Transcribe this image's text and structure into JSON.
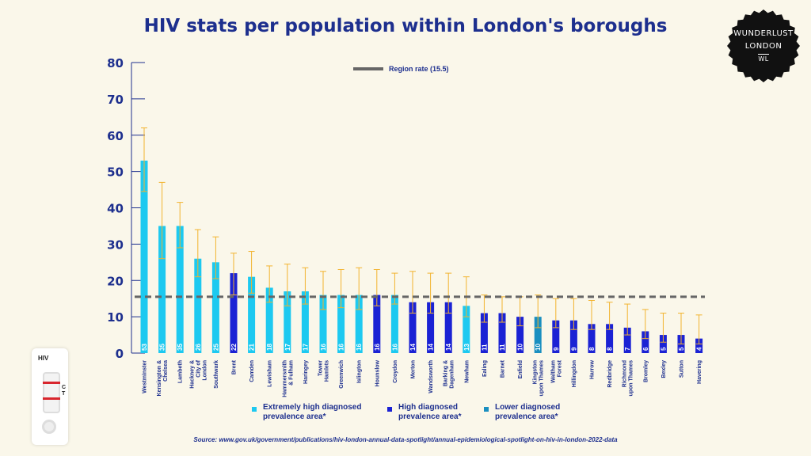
{
  "title": "HIV stats per population within London's boroughs",
  "badge": {
    "line1": "WUNDERLUST",
    "line2": "LONDON",
    "mark": "WL"
  },
  "card": {
    "label": "HIV",
    "control": "C",
    "test": "T"
  },
  "source": "Source: www.gov.uk/government/publications/hiv-london-annual-data-spotlight/annual-epidemiological-spotlight-on-hiv-in-london-2022-data",
  "region_label": "Region rate (15.5)",
  "colors": {
    "extremely": "#1dc9f0",
    "high": "#1b22d4",
    "lower": "#1a8fc0",
    "error": "#f2b32e",
    "title": "#1d2f8e",
    "region": "#666666"
  },
  "legend": [
    {
      "key": "extremely",
      "label": "Extremely high diagnosed prevalence area*"
    },
    {
      "key": "high",
      "label": "High diagnosed prevalence area*"
    },
    {
      "key": "lower",
      "label": "Lower diagnosed prevalence area*"
    }
  ],
  "chart_data": {
    "type": "bar",
    "title": "HIV stats per population within London's boroughs",
    "ylim": [
      0,
      80
    ],
    "yticks": [
      0,
      10,
      20,
      30,
      40,
      50,
      60,
      70,
      80
    ],
    "region_rate": 15.5,
    "categories": [
      "Westminster",
      "Kensington & Chelsea",
      "Lambeth",
      "Hackney & City of London",
      "Southwark",
      "Brent",
      "Camden",
      "Lewisham",
      "Hammersmith & Fulham",
      "Haringey",
      "Tower Hamlets",
      "Greenwich",
      "Islington",
      "Hounslow",
      "Croydon",
      "Merton",
      "Wandsworth",
      "Barking & Dagenham",
      "Newham",
      "Ealing",
      "Barnet",
      "Enfield",
      "Kingston upon Thames",
      "Waltham Forest",
      "Hillingdon",
      "Harrow",
      "Redbridge",
      "Richmond upon Thames",
      "Bromley",
      "Bexley",
      "Sutton",
      "Havering"
    ],
    "values": [
      53,
      35,
      35,
      26,
      25,
      22,
      21,
      18,
      17,
      17,
      16,
      16,
      16,
      16,
      16,
      14,
      14,
      14,
      13,
      11,
      11,
      10,
      10,
      9,
      9,
      8,
      8,
      7,
      6,
      5,
      5,
      4
    ],
    "error_low": [
      44.5,
      26,
      29,
      21,
      20.5,
      16,
      16.5,
      14,
      13,
      13.5,
      12,
      12.5,
      12,
      13,
      13.5,
      11,
      11,
      11,
      10,
      8.5,
      8.5,
      7.5,
      7,
      7,
      6.5,
      6.5,
      6.5,
      5,
      4,
      3,
      2.5,
      2.5
    ],
    "error_high": [
      62,
      47,
      41.5,
      34,
      32,
      27.5,
      28,
      24,
      24.5,
      23.5,
      22.5,
      23,
      23.5,
      23,
      22,
      22.5,
      22,
      22,
      21,
      16,
      15.5,
      15.5,
      16,
      15,
      15,
      14.5,
      14,
      13.5,
      12,
      11,
      11,
      10.5
    ],
    "category_type": [
      "extremely",
      "extremely",
      "extremely",
      "extremely",
      "extremely",
      "high",
      "extremely",
      "extremely",
      "extremely",
      "extremely",
      "extremely",
      "extremely",
      "extremely",
      "high",
      "extremely",
      "high",
      "high",
      "high",
      "extremely",
      "high",
      "high",
      "high",
      "lower",
      "high",
      "high",
      "high",
      "high",
      "high",
      "high",
      "high",
      "high",
      "high"
    ]
  }
}
